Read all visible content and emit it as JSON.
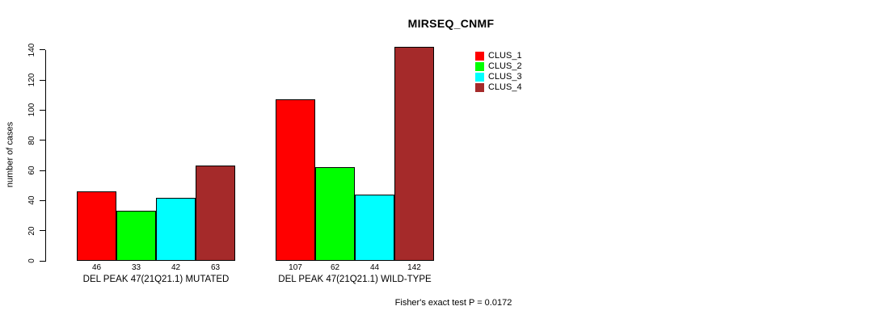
{
  "title": "MIRSEQ_CNMF",
  "ylabel": "number of cases",
  "footer": "Fisher's exact test P = 0.0172",
  "chart_data": {
    "type": "bar",
    "title": "MIRSEQ_CNMF",
    "xlabel": "",
    "ylabel": "number of cases",
    "categories": [
      "DEL PEAK 47(21Q21.1) MUTATED",
      "DEL PEAK 47(21Q21.1) WILD-TYPE"
    ],
    "series": [
      {
        "name": "CLUS_1",
        "color": "#FF0000",
        "values": [
          46,
          107
        ]
      },
      {
        "name": "CLUS_2",
        "color": "#00FF00",
        "values": [
          33,
          62
        ]
      },
      {
        "name": "CLUS_3",
        "color": "#00FFFF",
        "values": [
          42,
          44
        ]
      },
      {
        "name": "CLUS_4",
        "color": "#A52A2A",
        "values": [
          63,
          142
        ]
      }
    ],
    "yticks": [
      0,
      20,
      40,
      60,
      80,
      100,
      120,
      140
    ],
    "ylim": [
      0,
      140
    ],
    "grid": false,
    "legend_position": "top-right",
    "bar_value_labels_shown": true,
    "annotation": "Fisher's exact test P = 0.0172"
  },
  "colors": {
    "background": "#FFFFFF",
    "axis": "#000000",
    "bar_border": "#000000",
    "text": "#000000"
  }
}
